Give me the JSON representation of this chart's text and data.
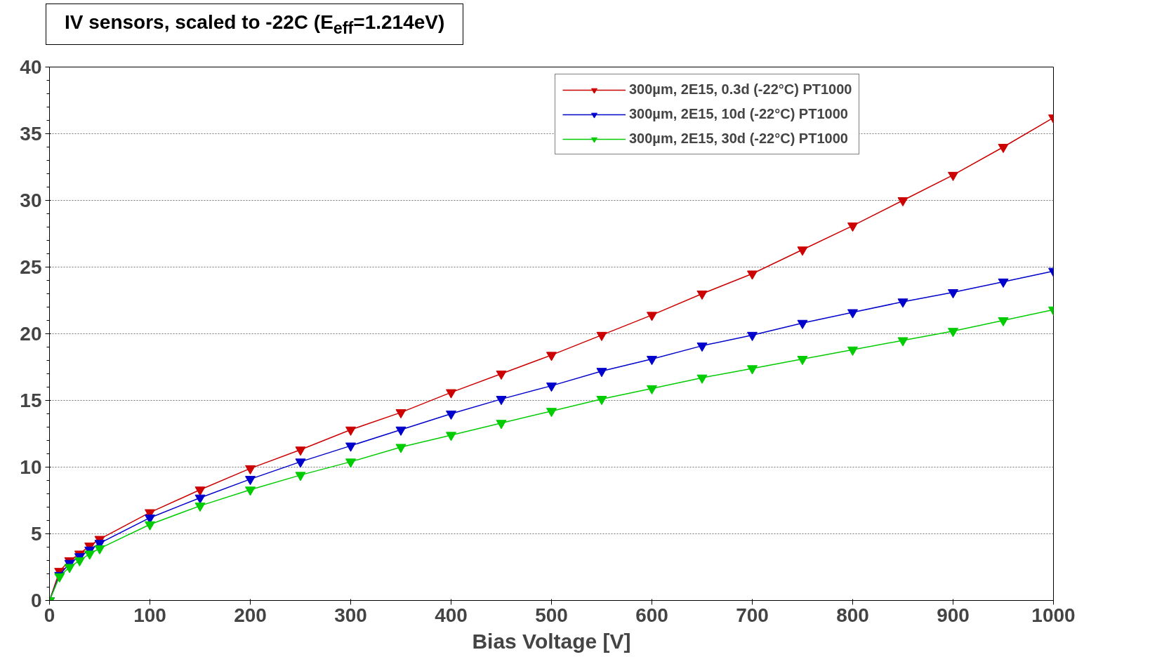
{
  "chart_data": {
    "type": "line",
    "title": "IV sensors, scaled to -22C (E$_{eff}$=1.214eV)",
    "xlabel": "Bias Voltage [V]",
    "x": [
      0,
      10,
      20,
      30,
      40,
      50,
      100,
      150,
      200,
      250,
      300,
      350,
      400,
      450,
      500,
      550,
      600,
      650,
      700,
      750,
      800,
      850,
      900,
      950,
      1000
    ],
    "series": [
      {
        "name": "300µm, 2E15, 0.3d (-22°C) PT1000",
        "color": "#cc0000",
        "values": [
          0,
          2.2,
          3.0,
          3.5,
          4.1,
          4.6,
          6.6,
          8.3,
          9.9,
          11.3,
          12.8,
          14.1,
          15.6,
          17.0,
          18.4,
          19.9,
          21.4,
          23.0,
          24.5,
          26.3,
          28.1,
          30.0,
          31.9,
          34.0,
          36.2
        ]
      },
      {
        "name": "300µm, 2E15, 10d (-22°C) PT1000",
        "color": "#0000cc",
        "values": [
          0,
          1.9,
          2.8,
          3.3,
          3.8,
          4.3,
          6.2,
          7.7,
          9.1,
          10.4,
          11.6,
          12.8,
          14.0,
          15.1,
          16.1,
          17.2,
          18.1,
          19.1,
          19.9,
          20.8,
          21.6,
          22.4,
          23.1,
          23.9,
          24.7
        ]
      },
      {
        "name": "300µm, 2E15, 30d (-22°C) PT1000",
        "color": "#00cc00",
        "values": [
          0,
          1.8,
          2.5,
          3.0,
          3.5,
          3.9,
          5.7,
          7.1,
          8.3,
          9.4,
          10.4,
          11.5,
          12.4,
          13.3,
          14.2,
          15.1,
          15.9,
          16.7,
          17.4,
          18.1,
          18.8,
          19.5,
          20.2,
          21.0,
          21.8
        ]
      }
    ],
    "xlim": [
      0,
      1000
    ],
    "xticks": [
      0,
      100,
      200,
      300,
      400,
      500,
      600,
      700,
      800,
      900,
      1000
    ],
    "ylim": [
      0,
      40
    ],
    "yticks": [
      0,
      5,
      10,
      15,
      20,
      25,
      30,
      35,
      40
    ],
    "grid": "y",
    "legend": "top right",
    "marker": "triangle",
    "line_style": "solid"
  }
}
